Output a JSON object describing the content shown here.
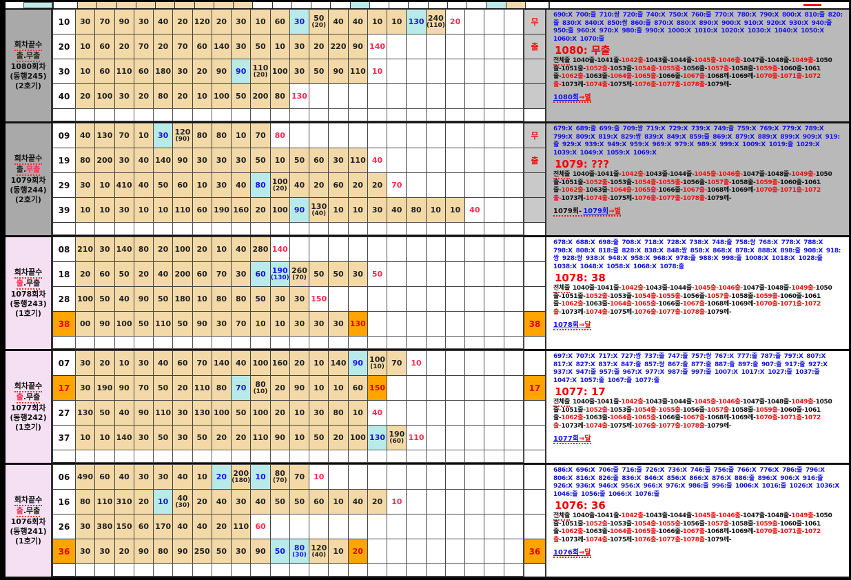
{
  "palette": {
    "tan": "#f3d9a7",
    "cyan": "#b9eaea",
    "orange": "#ffa400",
    "red": "#ff2a4d",
    "blue": "#1414e6",
    "gray_label": "#a9a9a9",
    "gray_panel": "#b9b9b9",
    "pink_label": "#f4e0f2"
  },
  "strip": {
    "tan_cols": [
      1,
      2,
      3,
      4,
      5,
      6,
      7,
      8,
      9
    ],
    "cyan_cols": [
      15,
      22
    ],
    "extra_tan_cols": [
      23
    ]
  },
  "trail_label": "전체줄",
  "trail": [
    [
      "1040줄-",
      "k"
    ],
    [
      "1041줄-",
      "k"
    ],
    [
      "1042출-",
      "r"
    ],
    [
      "1043줄-",
      "k"
    ],
    [
      "1044줄-",
      "k"
    ],
    [
      "1045출-",
      "r"
    ],
    [
      "1046출-",
      "r"
    ],
    [
      "1047줄-",
      "k"
    ],
    [
      "1048줄-",
      "k"
    ],
    [
      "1049출-",
      "r"
    ],
    [
      "1050줄-",
      "k"
    ],
    [
      "1051줄-",
      "k"
    ],
    [
      "1052출-",
      "r"
    ],
    [
      "1053줄-",
      "k"
    ],
    [
      "1054출-",
      "r"
    ],
    [
      "1055출-",
      "r"
    ],
    [
      "1056줄-",
      "k"
    ],
    [
      "1057출-",
      "r"
    ],
    [
      "1058줄-",
      "k"
    ],
    [
      "1059출-",
      "r"
    ],
    [
      "1060줄-",
      "k"
    ],
    [
      "1061줄-",
      "k"
    ],
    [
      "1062출-",
      "r"
    ],
    [
      "1063줄-",
      "k"
    ],
    [
      "1064출-",
      "r"
    ],
    [
      "1065출-",
      "r"
    ],
    [
      "1066줄-",
      "k"
    ],
    [
      "1067출-",
      "r"
    ],
    [
      "1068께-",
      "k"
    ],
    [
      "1069께-",
      "k"
    ],
    [
      "1070출-",
      "r"
    ],
    [
      "1071출-",
      "r"
    ],
    [
      "1072출-",
      "r"
    ],
    [
      "1073께-",
      "k"
    ],
    [
      "1074출-",
      "r"
    ],
    [
      "1075께-",
      "k"
    ],
    [
      "1076출-",
      "r"
    ],
    [
      "1077출-",
      "r"
    ],
    [
      "1078출-",
      "r"
    ],
    [
      "1079께-",
      "k"
    ]
  ],
  "groups": [
    {
      "theme": "gray",
      "label": {
        "line1": "회차끝수",
        "line2": [
          [
            "출.무출",
            "k"
          ]
        ],
        "round": "1080회차",
        "org": "(동행245)",
        "machine": "(2호기)"
      },
      "rows": [
        {
          "num": "10",
          "hl": false,
          "cells": [
            30,
            70,
            90,
            30,
            40,
            20,
            120,
            20,
            30,
            10,
            60,
            [
              30,
              "c",
              "b"
            ],
            [
              50,
              "t",
              "k",
              20
            ],
            40,
            40,
            10,
            10,
            [
              130,
              "c",
              "b"
            ],
            [
              240,
              "t",
              "k",
              110
            ],
            [
              20,
              "w",
              "r"
            ]
          ]
        },
        {
          "num": "20",
          "hl": false,
          "cells": [
            10,
            60,
            20,
            70,
            20,
            70,
            60,
            140,
            30,
            50,
            10,
            30,
            20,
            220,
            90,
            [
              140,
              "w",
              "r"
            ]
          ]
        },
        {
          "num": "30",
          "hl": false,
          "cells": [
            10,
            60,
            110,
            60,
            180,
            30,
            20,
            90,
            [
              90,
              "c",
              "b"
            ],
            [
              110,
              "t",
              "k",
              20
            ],
            100,
            30,
            50,
            90,
            110,
            [
              10,
              "w",
              "r"
            ]
          ]
        },
        {
          "num": "40",
          "hl": false,
          "cells": [
            20,
            100,
            30,
            20,
            80,
            20,
            10,
            100,
            50,
            200,
            80,
            [
              130,
              "w",
              "r"
            ]
          ]
        }
      ],
      "ans": [
        [
          "무",
          "mu"
        ],
        [
          "출",
          "mu"
        ],
        [
          "",
          ""
        ],
        [
          "",
          ""
        ]
      ],
      "panel": {
        "digits": "690:X 700:줄 710:쌍 720:줄 740:X 750:X 760:줄 770:X 780:X 790:X 800:X 810:줄 820:줄 830:X 840:X 850:쌍 860:줄 870:X 880:X 890:X 900:X 910:X 920:X 930:X 940:줄 950:줄 960:X 970:X 980:줄 990:X 1000:X 1010:X 1020:X 1030:X 1040:X 1050:X 1060:X 1070:줄",
        "heading": "1080: 무출",
        "link_prefix": "",
        "link_main": "1080회",
        "link_tail": "⇒별"
      }
    },
    {
      "theme": "gray",
      "label": {
        "line1": "회차끝수",
        "line2": [
          [
            "출.",
            "k"
          ],
          [
            "무출",
            "r"
          ]
        ],
        "round": "1079회차",
        "org": "(동행244)",
        "machine": "(2호기)"
      },
      "rows": [
        {
          "num": "09",
          "hl": false,
          "cells": [
            40,
            130,
            70,
            10,
            [
              30,
              "c",
              "b"
            ],
            [
              120,
              "t",
              "k",
              90
            ],
            80,
            80,
            10,
            70,
            [
              80,
              "w",
              "r"
            ]
          ]
        },
        {
          "num": "19",
          "hl": false,
          "cells": [
            80,
            200,
            30,
            40,
            140,
            90,
            30,
            30,
            30,
            50,
            10,
            50,
            60,
            30,
            110,
            [
              40,
              "w",
              "r"
            ]
          ]
        },
        {
          "num": "29",
          "hl": false,
          "cells": [
            30,
            10,
            410,
            40,
            50,
            60,
            10,
            30,
            40,
            [
              80,
              "c",
              "b"
            ],
            [
              100,
              "t",
              "k",
              20
            ],
            40,
            20,
            60,
            20,
            20,
            [
              70,
              "w",
              "r"
            ]
          ]
        },
        {
          "num": "39",
          "hl": false,
          "cells": [
            10,
            10,
            30,
            10,
            10,
            110,
            60,
            190,
            160,
            20,
            100,
            [
              90,
              "c",
              "b"
            ],
            [
              130,
              "t",
              "k",
              40
            ],
            10,
            10,
            30,
            40,
            80,
            10,
            10,
            [
              40,
              "w",
              "r"
            ]
          ]
        }
      ],
      "ans": [
        [
          "무",
          "mu"
        ],
        [
          "출",
          "mu"
        ],
        [
          "",
          ""
        ],
        [
          "",
          ""
        ]
      ],
      "panel": {
        "digits": "679:X 689:줄 699:줄 709:쌍 719:X 729:X 739:X 749:줄 759:X 769:X 779:X 789:X 799:X 809:X 819:X 829:쌍 839:X 849:X 859:줄 869:X 879:X 889:X 899:X 909:X 919:줄 929:X 939:X 949:X 959:X 969:X 979:X 989:X 999:X 1009:X 1019:줄 1029:X 1039:X 1049:X 1059:X 1069:X",
        "heading": "1079: ???",
        "link_prefix": "1079회-",
        "link_main": "1079회",
        "link_tail": "⇒별"
      }
    },
    {
      "theme": "pink",
      "label": {
        "line1": "회차끝수",
        "line2": [
          [
            "출",
            "r"
          ],
          [
            ".무출",
            "k"
          ]
        ],
        "round": "1078회차",
        "org": "(동행243)",
        "machine": "(1호기)"
      },
      "rows": [
        {
          "num": "08",
          "hl": false,
          "cells": [
            210,
            30,
            140,
            80,
            20,
            100,
            20,
            10,
            40,
            280,
            [
              140,
              "w",
              "r"
            ]
          ]
        },
        {
          "num": "18",
          "hl": false,
          "cells": [
            20,
            60,
            50,
            20,
            40,
            200,
            60,
            70,
            30,
            [
              60,
              "c",
              "b"
            ],
            [
              190,
              "c",
              "b",
              130
            ],
            [
              260,
              "t",
              "k",
              70
            ],
            50,
            50,
            30,
            [
              50,
              "w",
              "r"
            ]
          ]
        },
        {
          "num": "28",
          "hl": false,
          "cells": [
            100,
            50,
            40,
            90,
            50,
            180,
            10,
            80,
            80,
            50,
            30,
            30,
            [
              150,
              "w",
              "r"
            ]
          ]
        },
        {
          "num": "38",
          "hl": true,
          "cells": [
            "00",
            90,
            100,
            50,
            110,
            50,
            90,
            30,
            70,
            10,
            10,
            30,
            30,
            30,
            [
              130,
              "o",
              "r"
            ]
          ]
        }
      ],
      "ans": [
        [
          "",
          ""
        ],
        [
          "",
          ""
        ],
        [
          "",
          ""
        ],
        [
          "38",
          "o"
        ]
      ],
      "panel": {
        "digits": "678:X 688:X 698:줄 708:X 718:X 728:X 738:X 748:줄 758:쌍 768:X 778:X 788:X 798:X 808:X 818:줄 828:X 838:X 848:쌍 858:X 868:X 878:X 888:X 898:줄 908:X 918:쌍 928:쌍 938:X 948:X 958:X 968:X 978:줄 988:X 998:줄 1008:X 1018:X 1028:줄 1038:X 1048:X 1058:X 1068:X 1078:줄",
        "heading": "1078: 38",
        "link_prefix": "",
        "link_main": "1078회",
        "link_tail": "⇒달"
      }
    },
    {
      "theme": "pink",
      "label": {
        "line1": "회차끝수",
        "line2": [
          [
            "출",
            "r"
          ],
          [
            ".무출",
            "k"
          ]
        ],
        "round": "1077회차",
        "org": "(동행242)",
        "machine": "(1호기)"
      },
      "rows": [
        {
          "num": "07",
          "hl": false,
          "cells": [
            30,
            20,
            10,
            30,
            40,
            60,
            70,
            140,
            40,
            100,
            160,
            20,
            10,
            140,
            [
              90,
              "c",
              "b"
            ],
            [
              100,
              "t",
              "k",
              10
            ],
            70,
            [
              10,
              "w",
              "r"
            ]
          ]
        },
        {
          "num": "17",
          "hl": true,
          "cells": [
            30,
            190,
            90,
            70,
            50,
            20,
            110,
            80,
            [
              70,
              "c",
              "b"
            ],
            [
              80,
              "t",
              "k",
              10
            ],
            20,
            90,
            10,
            10,
            60,
            [
              150,
              "o",
              "r"
            ]
          ]
        },
        {
          "num": "27",
          "hl": false,
          "cells": [
            130,
            50,
            40,
            90,
            110,
            30,
            130,
            100,
            50,
            100,
            20,
            10,
            30,
            80,
            10,
            [
              40,
              "w",
              "r"
            ]
          ]
        },
        {
          "num": "37",
          "hl": false,
          "cells": [
            10,
            10,
            140,
            30,
            50,
            30,
            50,
            20,
            20,
            110,
            90,
            10,
            50,
            20,
            100,
            [
              130,
              "c",
              "b"
            ],
            [
              190,
              "t",
              "k",
              60
            ],
            [
              110,
              "w",
              "r"
            ]
          ]
        }
      ],
      "ans": [
        [
          "",
          ""
        ],
        [
          "17",
          "o"
        ],
        [
          "",
          ""
        ],
        [
          "",
          ""
        ]
      ],
      "panel": {
        "digits": "697:X 707:X 717:X 727:쌍 737:줄 747:줄 757:쌍 767:X 777:줄 787:줄 797:X 807:X 817:X 827:X 837:X 847:줄 857:쌍 867:줄 877:줄 887:줄 897:줄 907:줄 917:줄 927:X 937:X 947:줄 957:줄 967:X 977:X 987:줄 997:줄 1007:X 1017:X 1027:줄 1037:줄 1047:X 1057:줄 1067:줄 1077:줄",
        "heading": "1077: 17",
        "link_prefix": "",
        "link_main": "1077회",
        "link_tail": "⇒달"
      }
    },
    {
      "theme": "pink",
      "label": {
        "line1": "회차끝수",
        "line2": [
          [
            "출",
            "r"
          ],
          [
            ".무출",
            "k"
          ]
        ],
        "round": "1076회차",
        "org": "(동행241)",
        "machine": "(1호기)"
      },
      "rows": [
        {
          "num": "06",
          "hl": false,
          "cells": [
            490,
            60,
            40,
            30,
            30,
            40,
            10,
            [
              20,
              "c",
              "b"
            ],
            [
              200,
              "t",
              "k",
              180
            ],
            [
              10,
              "c",
              "b"
            ],
            [
              80,
              "t",
              "k",
              70
            ],
            70,
            [
              10,
              "w",
              "r"
            ]
          ]
        },
        {
          "num": "16",
          "hl": false,
          "cells": [
            80,
            110,
            310,
            20,
            [
              10,
              "c",
              "b"
            ],
            [
              40,
              "t",
              "k",
              30
            ],
            20,
            40,
            30,
            40,
            50,
            50,
            60,
            10,
            40,
            20,
            [
              10,
              "w",
              "r"
            ]
          ]
        },
        {
          "num": "26",
          "hl": false,
          "cells": [
            30,
            380,
            150,
            60,
            170,
            40,
            40,
            20,
            110,
            [
              60,
              "w",
              "r"
            ]
          ]
        },
        {
          "num": "36",
          "hl": true,
          "cells": [
            30,
            30,
            20,
            90,
            80,
            90,
            250,
            50,
            30,
            90,
            [
              50,
              "c",
              "b"
            ],
            [
              80,
              "c",
              "b",
              30
            ],
            [
              120,
              "t",
              "k",
              40
            ],
            10,
            [
              20,
              "o",
              "r"
            ]
          ]
        }
      ],
      "ans": [
        [
          "",
          ""
        ],
        [
          "",
          ""
        ],
        [
          "",
          ""
        ],
        [
          "36",
          "o"
        ]
      ],
      "panel": {
        "digits": "686:X 696:X 706:줄 716:줄 726:X 736:X 746:줄 756:줄 766:X 776:X 786:줄 796:X 806:X 816:X 826:줄 836:X 846:X 856:X 866:X 876:X 886:줄 896:X 906:X 916:줄 926:X 936:X 946:X 956:X 966:X 976:X 986:줄 996:줄 1006:X 1016:줄 1026:X 1036:X 1046:줄 1056:줄 1066:X 1076:줄",
        "heading": "1076: 36",
        "link_prefix": "",
        "link_main": "1076회",
        "link_tail": "⇒달"
      }
    }
  ]
}
